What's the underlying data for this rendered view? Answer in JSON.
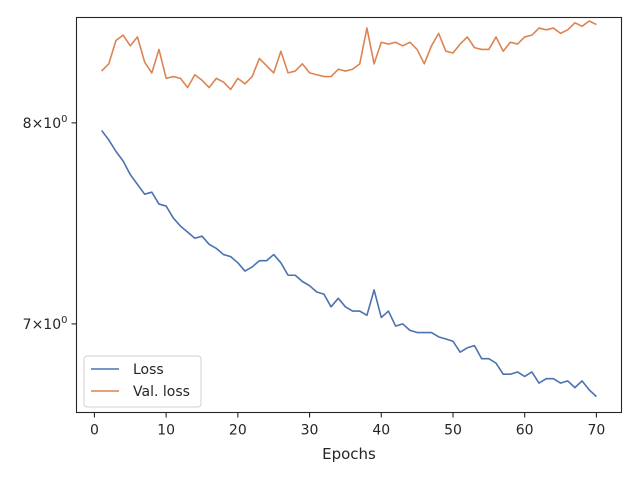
{
  "chart_data": {
    "type": "line",
    "title": "",
    "xlabel": "Epochs",
    "ylabel": "",
    "yscale": "log",
    "xlim": [
      -2.5,
      73.5
    ],
    "ylim": [
      6.6,
      8.58
    ],
    "xticks": [
      {
        "value": 0,
        "label": "0"
      },
      {
        "value": 10,
        "label": "10"
      },
      {
        "value": 20,
        "label": "20"
      },
      {
        "value": 30,
        "label": "30"
      },
      {
        "value": 40,
        "label": "40"
      },
      {
        "value": 50,
        "label": "50"
      },
      {
        "value": 60,
        "label": "60"
      },
      {
        "value": 70,
        "label": "70"
      }
    ],
    "yticks": [
      {
        "value": 7,
        "base": "7",
        "mult": "×",
        "pow": "10",
        "exp": "0"
      },
      {
        "value": 8,
        "base": "8",
        "mult": "×",
        "pow": "10",
        "exp": "0"
      }
    ],
    "grid": false,
    "legend_position": "lower-left",
    "x": [
      1,
      2,
      3,
      4,
      5,
      6,
      7,
      8,
      9,
      10,
      11,
      12,
      13,
      14,
      15,
      16,
      17,
      18,
      19,
      20,
      21,
      22,
      23,
      24,
      25,
      26,
      27,
      28,
      29,
      30,
      31,
      32,
      33,
      34,
      35,
      36,
      37,
      38,
      39,
      40,
      41,
      42,
      43,
      44,
      45,
      46,
      47,
      48,
      49,
      50,
      51,
      52,
      53,
      54,
      55,
      56,
      57,
      58,
      59,
      60,
      61,
      62,
      63,
      64,
      65,
      66,
      67,
      68,
      69,
      70
    ],
    "series": [
      {
        "name": "Loss",
        "color": "#4c72b0",
        "values": [
          7.96,
          7.91,
          7.85,
          7.8,
          7.73,
          7.68,
          7.63,
          7.64,
          7.58,
          7.57,
          7.51,
          7.47,
          7.44,
          7.41,
          7.42,
          7.38,
          7.36,
          7.33,
          7.32,
          7.29,
          7.25,
          7.27,
          7.3,
          7.3,
          7.33,
          7.29,
          7.23,
          7.23,
          7.2,
          7.18,
          7.15,
          7.14,
          7.08,
          7.12,
          7.08,
          7.06,
          7.06,
          7.04,
          7.16,
          7.03,
          7.06,
          6.99,
          7.0,
          6.97,
          6.96,
          6.96,
          6.96,
          6.94,
          6.93,
          6.92,
          6.87,
          6.89,
          6.9,
          6.84,
          6.84,
          6.82,
          6.77,
          6.77,
          6.78,
          6.76,
          6.78,
          6.73,
          6.75,
          6.75,
          6.73,
          6.74,
          6.71,
          6.74,
          6.7,
          6.67
        ]
      },
      {
        "name": "Val. loss",
        "color": "#dd8452",
        "values": [
          8.28,
          8.32,
          8.45,
          8.48,
          8.42,
          8.47,
          8.33,
          8.27,
          8.4,
          8.24,
          8.25,
          8.24,
          8.19,
          8.26,
          8.23,
          8.19,
          8.24,
          8.22,
          8.18,
          8.24,
          8.21,
          8.25,
          8.35,
          8.31,
          8.27,
          8.39,
          8.27,
          8.28,
          8.32,
          8.27,
          8.26,
          8.25,
          8.25,
          8.29,
          8.28,
          8.29,
          8.32,
          8.52,
          8.32,
          8.44,
          8.43,
          8.44,
          8.42,
          8.44,
          8.4,
          8.32,
          8.42,
          8.49,
          8.39,
          8.38,
          8.43,
          8.47,
          8.41,
          8.4,
          8.4,
          8.47,
          8.39,
          8.44,
          8.43,
          8.47,
          8.48,
          8.52,
          8.51,
          8.52,
          8.49,
          8.51,
          8.55,
          8.53,
          8.56,
          8.54
        ]
      }
    ]
  }
}
